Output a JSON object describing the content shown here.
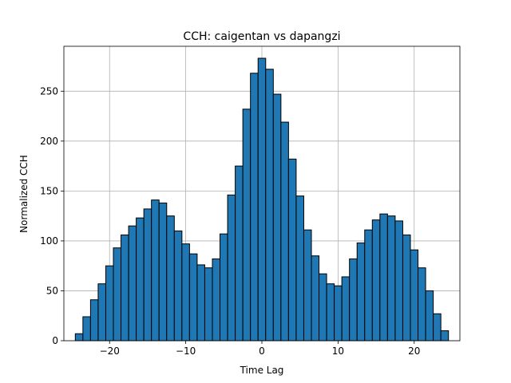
{
  "chart_data": {
    "type": "bar",
    "title": "CCH: caigentan vs dapangzi",
    "xlabel": "Time Lag",
    "ylabel": "Normalized CCH",
    "xlim": [
      -26,
      26
    ],
    "ylim": [
      0,
      295
    ],
    "xticks": [
      -20,
      -10,
      0,
      10,
      20
    ],
    "xtick_labels": [
      "−20",
      "−10",
      "0",
      "10",
      "20"
    ],
    "yticks": [
      0,
      50,
      100,
      150,
      200,
      250
    ],
    "grid": true,
    "bar_color": "#1f77b4",
    "edge_color": "#000000",
    "bin_width": 1,
    "bins": [
      {
        "x": -24,
        "y": 7
      },
      {
        "x": -23,
        "y": 24
      },
      {
        "x": -22,
        "y": 41
      },
      {
        "x": -21,
        "y": 57
      },
      {
        "x": -20,
        "y": 75
      },
      {
        "x": -19,
        "y": 93
      },
      {
        "x": -18,
        "y": 106
      },
      {
        "x": -17,
        "y": 115
      },
      {
        "x": -16,
        "y": 123
      },
      {
        "x": -15,
        "y": 132
      },
      {
        "x": -14,
        "y": 141
      },
      {
        "x": -13,
        "y": 138
      },
      {
        "x": -12,
        "y": 125
      },
      {
        "x": -11,
        "y": 110
      },
      {
        "x": -10,
        "y": 97
      },
      {
        "x": -9,
        "y": 87
      },
      {
        "x": -8,
        "y": 76
      },
      {
        "x": -7,
        "y": 73
      },
      {
        "x": -6,
        "y": 82
      },
      {
        "x": -5,
        "y": 107
      },
      {
        "x": -4,
        "y": 146
      },
      {
        "x": -3,
        "y": 175
      },
      {
        "x": -2,
        "y": 232
      },
      {
        "x": -1,
        "y": 268
      },
      {
        "x": 0,
        "y": 283
      },
      {
        "x": 1,
        "y": 272
      },
      {
        "x": 2,
        "y": 247
      },
      {
        "x": 3,
        "y": 219
      },
      {
        "x": 4,
        "y": 182
      },
      {
        "x": 5,
        "y": 145
      },
      {
        "x": 6,
        "y": 111
      },
      {
        "x": 7,
        "y": 85
      },
      {
        "x": 8,
        "y": 67
      },
      {
        "x": 9,
        "y": 57
      },
      {
        "x": 10,
        "y": 55
      },
      {
        "x": 11,
        "y": 64
      },
      {
        "x": 12,
        "y": 82
      },
      {
        "x": 13,
        "y": 98
      },
      {
        "x": 14,
        "y": 111
      },
      {
        "x": 15,
        "y": 121
      },
      {
        "x": 16,
        "y": 127
      },
      {
        "x": 17,
        "y": 125
      },
      {
        "x": 18,
        "y": 120
      },
      {
        "x": 19,
        "y": 106
      },
      {
        "x": 20,
        "y": 91
      },
      {
        "x": 21,
        "y": 73
      },
      {
        "x": 22,
        "y": 50
      },
      {
        "x": 23,
        "y": 27
      },
      {
        "x": 24,
        "y": 10
      }
    ]
  }
}
